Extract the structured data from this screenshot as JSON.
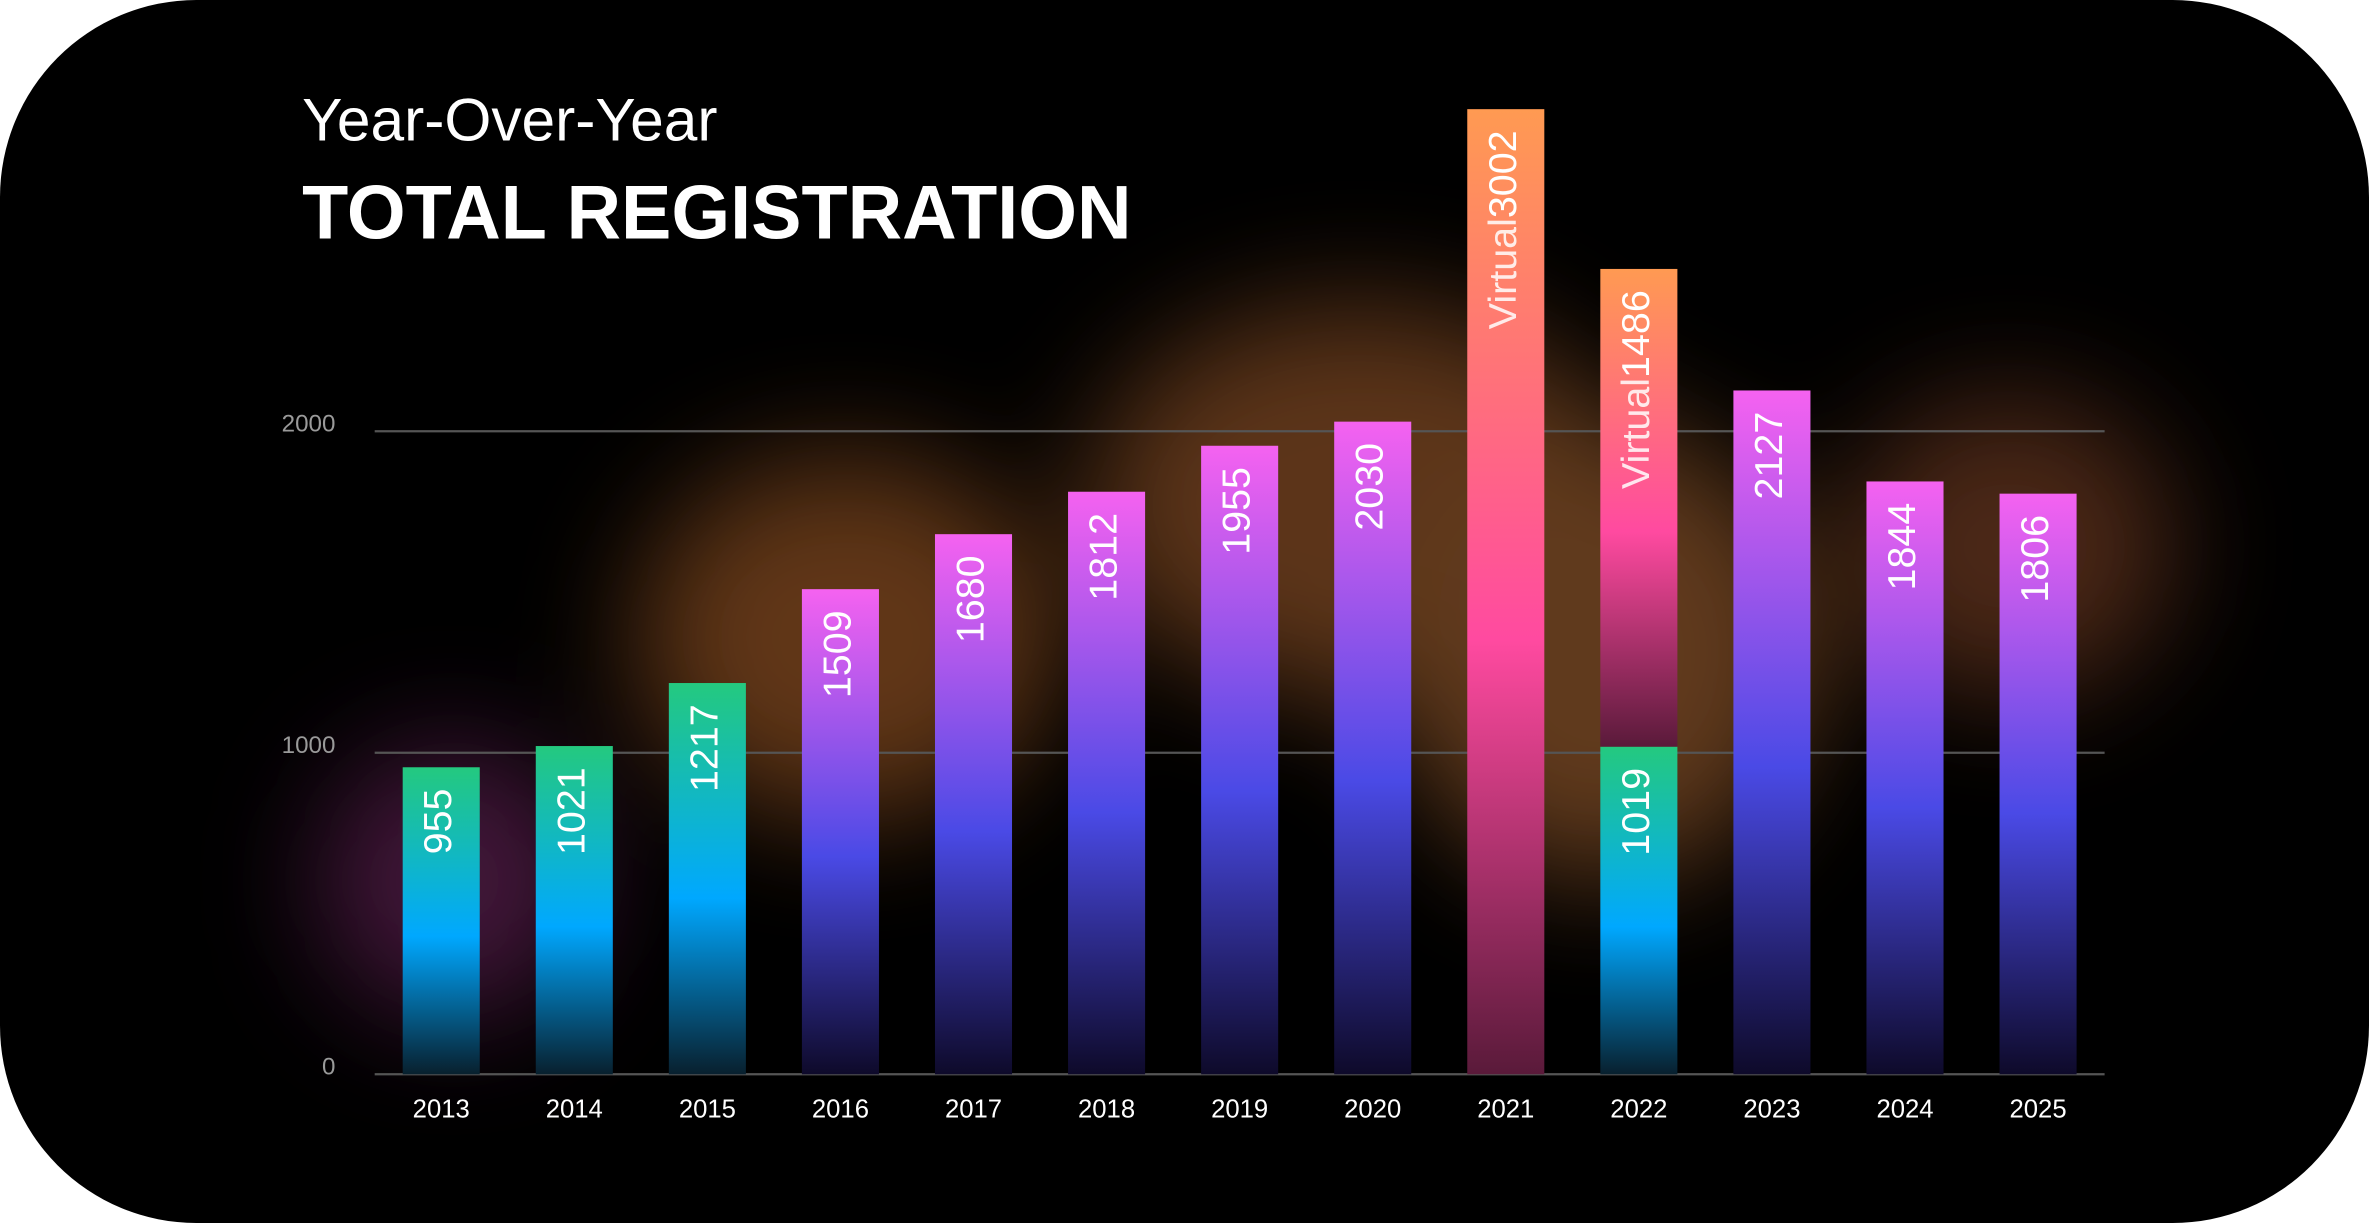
{
  "chart_data": {
    "type": "bar",
    "subtitle": "Year-Over-Year",
    "title": "TOTAL REGISTRATION",
    "categories": [
      "2013",
      "2014",
      "2015",
      "2016",
      "2017",
      "2018",
      "2019",
      "2020",
      "2021",
      "2022",
      "2023",
      "2024",
      "2025"
    ],
    "series": [
      {
        "values": [
          955,
          1021,
          1217,
          1509,
          1680,
          1812,
          1955,
          2030,
          null,
          1019,
          2127,
          1844,
          1806
        ],
        "colors": [
          "#24c97f",
          "#24c97f",
          "#24c97f",
          "#f562f0",
          "#f562f0",
          "#f562f0",
          "#f562f0",
          "#f562f0",
          null,
          "#24c97f",
          "#f562f0",
          "#f562f0",
          "#f562f0"
        ]
      },
      {
        "name": "Virtual",
        "values": [
          null,
          null,
          null,
          null,
          null,
          null,
          null,
          null,
          3002,
          1486,
          null,
          null,
          null
        ],
        "color": "#ff9a52"
      }
    ],
    "stacked": true,
    "ylim": [
      0,
      3030
    ],
    "yticks": [
      0,
      1000,
      2000
    ],
    "grid": true
  }
}
